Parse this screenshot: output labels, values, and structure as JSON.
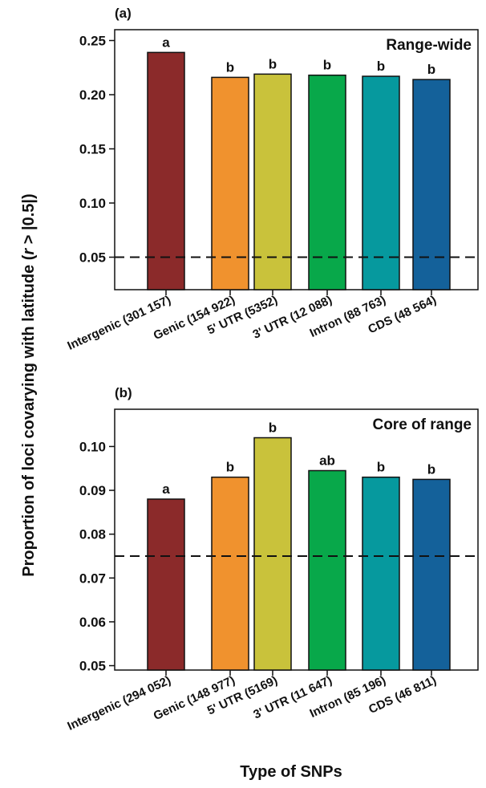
{
  "figure": {
    "ylabel_pre": "Proportion of loci covarying with latitude (",
    "ylabel_r": "r",
    "ylabel_post": " > |0.5|)",
    "xlabel": "Type of SNPs"
  },
  "chart_data": [
    {
      "type": "bar",
      "panel_label": "(a)",
      "inset_title": "Range-wide",
      "categories": [
        "Intergenic (301 157)",
        "Genic (154 922)",
        "5' UTR (5352)",
        "3' UTR (12 088)",
        "Intron (88 763)",
        "CDS (48 564)"
      ],
      "values": [
        0.239,
        0.216,
        0.219,
        0.218,
        0.217,
        0.214
      ],
      "significance": [
        "a",
        "b",
        "b",
        "b",
        "b",
        "b"
      ],
      "colors": [
        "#8b2a2a",
        "#f0922e",
        "#c9c23b",
        "#08a84a",
        "#06999e",
        "#14619a"
      ],
      "yticks": [
        "0.05",
        "0.10",
        "0.15",
        "0.20",
        "0.25"
      ],
      "ylim": [
        0.02,
        0.26
      ],
      "reference_line": 0.05
    },
    {
      "type": "bar",
      "panel_label": "(b)",
      "inset_title": "Core of range",
      "categories": [
        "Intergenic (294 052)",
        "Genic (148 977)",
        "5' UTR (5169)",
        "3' UTR (11 647)",
        "Intron (85 196)",
        "CDS (46 811)"
      ],
      "values": [
        0.088,
        0.093,
        0.102,
        0.0945,
        0.093,
        0.0925
      ],
      "significance": [
        "a",
        "b",
        "b",
        "ab",
        "b",
        "b"
      ],
      "colors": [
        "#8b2a2a",
        "#f0922e",
        "#c9c23b",
        "#08a84a",
        "#06999e",
        "#14619a"
      ],
      "yticks": [
        "0.05",
        "0.06",
        "0.07",
        "0.08",
        "0.09",
        "0.10"
      ],
      "ylim": [
        0.049,
        0.1085
      ],
      "reference_line": 0.075
    }
  ]
}
